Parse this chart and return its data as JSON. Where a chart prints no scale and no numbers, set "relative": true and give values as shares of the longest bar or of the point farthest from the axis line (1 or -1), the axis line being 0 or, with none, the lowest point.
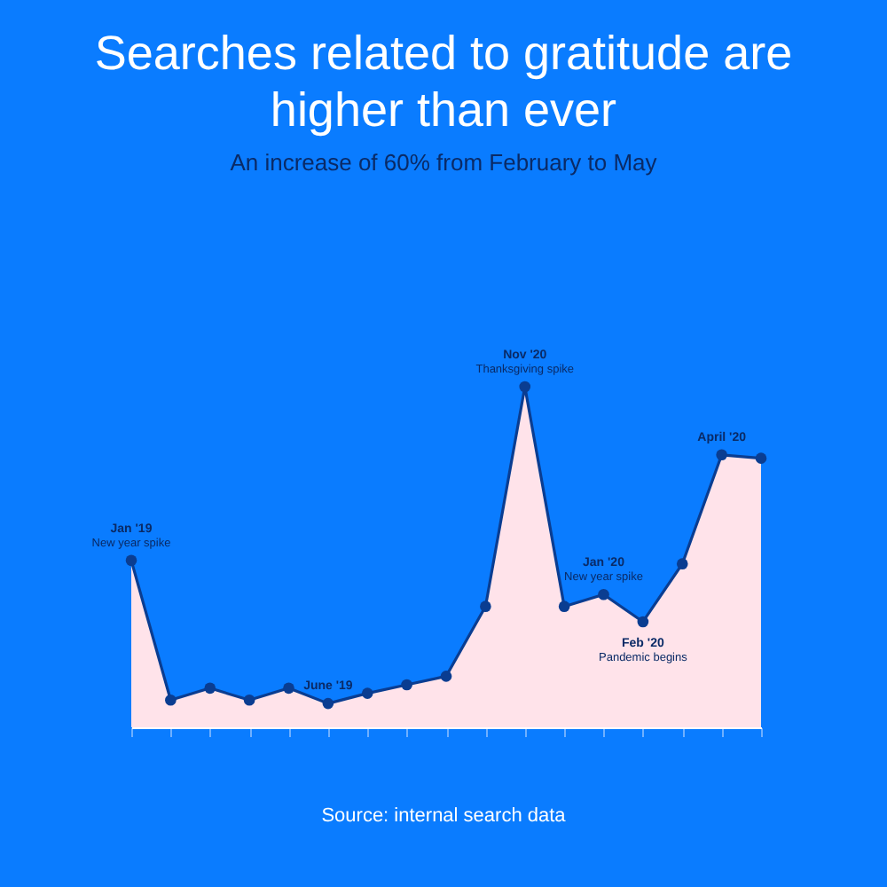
{
  "chart_data": {
    "type": "area",
    "title": "Searches related to gratitude are higher than ever",
    "subtitle": "An increase of 60% from February to May",
    "relative": true,
    "marker": "circle",
    "categories": [
      null,
      null,
      null,
      null,
      null,
      null,
      null,
      null,
      null,
      null,
      null,
      null,
      null,
      null,
      null,
      null,
      null
    ],
    "series": [
      {
        "color": "#0a3d91",
        "values": [
          0.49,
          0.08,
          0.115,
          0.08,
          0.115,
          0.07,
          0.1,
          0.125,
          0.15,
          0.355,
          1,
          0.355,
          0.39,
          0.31,
          0.48,
          0.8,
          0.79
        ]
      }
    ],
    "annotations": [
      {
        "text": "Jan '19",
        "y": 0.49
      },
      {
        "text": "New year spike",
        "y": 0.49
      },
      {
        "text": "June '19",
        "y": 0.07
      },
      {
        "text": "Nov '20",
        "y": 1
      },
      {
        "text": "Thanksgiving spike",
        "y": 1
      },
      {
        "text": "Jan '20",
        "y": 0.39
      },
      {
        "text": "New year spike",
        "y": 0.39
      },
      {
        "text": "Feb '20",
        "y": 0.31
      },
      {
        "text": "Pandemic begins",
        "y": 0.31
      },
      {
        "text": "April '20",
        "y": 0.8
      },
      "Source: internal search data"
    ]
  }
}
